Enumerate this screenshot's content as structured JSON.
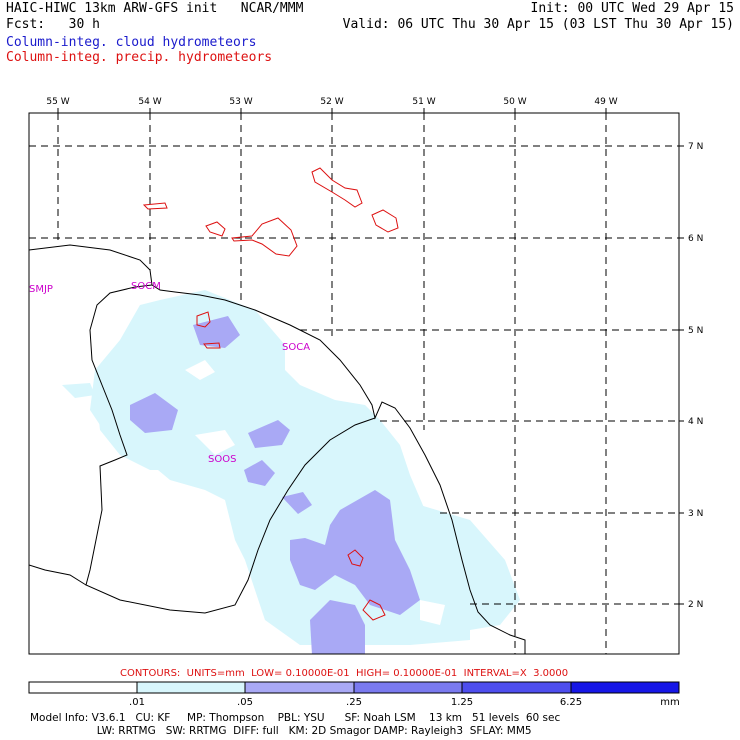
{
  "header": {
    "left_line1": "HAIC-HIWC 13km ARW-GFS init   NCAR/MMM",
    "left_line2": "Fcst:   30 h",
    "right_line1": "Init: 00 UTC Wed 29 Apr 15",
    "right_line2": "Valid: 06 UTC Thu 30 Apr 15 (03 LST Thu 30 Apr 15)",
    "legend_cloud": "Column-integ. cloud hydrometeors",
    "legend_precip": "Column-integ. precip. hydrometeors"
  },
  "colors": {
    "cloud_light": "#d8f6fc",
    "cloud_mid": "#a9a9f5",
    "precip_contour": "#dd1111",
    "station_label": "#cc00cc",
    "blue_text": "#1a1acc"
  },
  "map": {
    "lon_labels": [
      "55 W",
      "54 W",
      "53 W",
      "52 W",
      "51 W",
      "50 W",
      "49 W"
    ],
    "lat_labels": [
      "7 N",
      "6 N",
      "5 N",
      "4 N",
      "3 N",
      "2 N"
    ],
    "stations": [
      "SMJP",
      "SOCM",
      "SOCA",
      "SOOS"
    ]
  },
  "contour_info": "CONTOURS:  UNITS=mm  LOW= 0.10000E-01  HIGH= 0.10000E-01  INTERVAL=X  3.0000",
  "colorbar": {
    "tick_labels": [
      ".01",
      ".05",
      ".25",
      "1.25",
      "6.25"
    ],
    "units": "mm",
    "colors": [
      "#ffffff",
      "#d8f6fc",
      "#a9a9f5",
      "#7a7aef",
      "#4e4eee",
      "#1616e6"
    ]
  },
  "model_info": {
    "line1": "Model Info: V3.6.1   CU: KF     MP: Thompson    PBL: YSU      SF: Noah LSM    13 km   51 levels  60 sec",
    "line2": "                    LW: RRTMG   SW: RRTMG  DIFF: full   KM: 2D Smagor DAMP: Rayleigh3  SFLAY: MM5"
  }
}
